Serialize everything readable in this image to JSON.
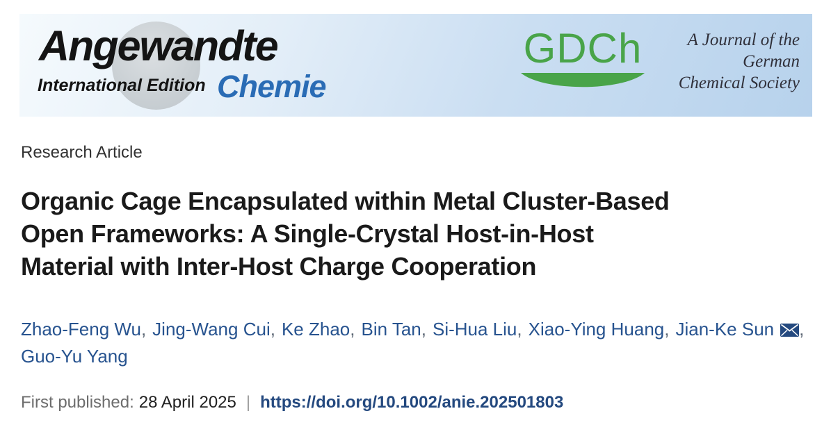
{
  "banner": {
    "brand": {
      "title": "Angewandte",
      "subtitle": "International Edition",
      "second_title": "Chemie"
    },
    "gdch_logo": "GDCh",
    "tagline_lines": [
      "A Journal of the",
      "German",
      "Chemical Society"
    ],
    "colors": {
      "chemie_blue": "#2a6cb5",
      "gdch_green": "#49a449",
      "banner_blue": "#b7d2ec",
      "link_blue": "#27538f"
    }
  },
  "article": {
    "kicker": "Research Article",
    "title_lines": [
      "Organic Cage Encapsulated within Metal Cluster-Based",
      "Open Frameworks: A Single-Crystal Host-in-Host",
      "Material with Inter-Host Charge Cooperation"
    ],
    "authors_lines": [
      [
        {
          "name": "Zhao-Feng Wu"
        },
        {
          "name": "Jing-Wang Cui"
        },
        {
          "name": "Ke Zhao"
        },
        {
          "name": "Bin Tan"
        },
        {
          "name": "Si-Hua Liu"
        },
        {
          "name": "Xiao-Ying Huang"
        },
        {
          "name": "Jian-Ke Sun",
          "email_icon": true
        }
      ],
      [
        {
          "name": "Guo-Yu Yang"
        }
      ]
    ],
    "meta": {
      "published_label": "First published:",
      "published_date": "28 April 2025",
      "separator": "|",
      "doi_link": "https://doi.org/10.1002/anie.202501803"
    }
  },
  "icons": {
    "email_icon": "✉"
  }
}
